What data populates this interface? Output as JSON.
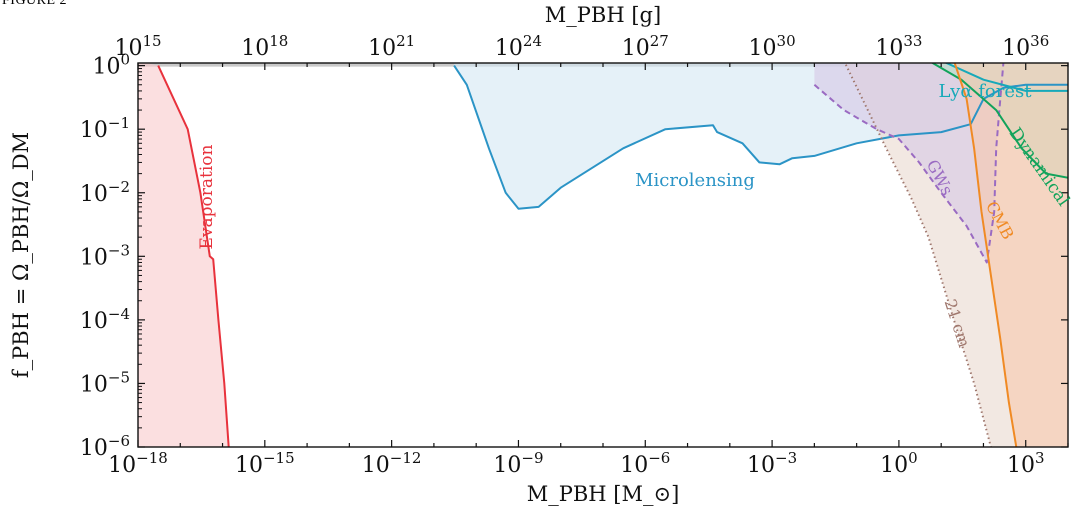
{
  "figure_caption": "FIGURE 2",
  "chart_data": {
    "type": "area",
    "title": "",
    "x_scale": "log",
    "y_scale": "log",
    "xlabel": "M_PBH [M_⊙]",
    "x2label": "M_PBH [g]",
    "ylabel": "f_PBH = Ω_PBH/Ω_DM",
    "xlim": [
      1e-18,
      10000.0
    ],
    "x2lim": [
      1000000000000000.0,
      1e+37
    ],
    "ylim": [
      1e-06,
      1.1
    ],
    "grid": false,
    "legend": "none",
    "x_ticks": [
      {
        "value": 1e-18,
        "base": "10",
        "exp": "−18"
      },
      {
        "value": 1e-15,
        "base": "10",
        "exp": "−15"
      },
      {
        "value": 1e-12,
        "base": "10",
        "exp": "−12"
      },
      {
        "value": 1e-09,
        "base": "10",
        "exp": "−9"
      },
      {
        "value": 1e-06,
        "base": "10",
        "exp": "−6"
      },
      {
        "value": 0.001,
        "base": "10",
        "exp": "−3"
      },
      {
        "value": 1,
        "base": "10",
        "exp": "0"
      },
      {
        "value": 1000.0,
        "base": "10",
        "exp": "3"
      }
    ],
    "x2_ticks": [
      {
        "value": 1000000000000000.0,
        "base": "10",
        "exp": "15"
      },
      {
        "value": 1e+18,
        "base": "10",
        "exp": "18"
      },
      {
        "value": 1e+21,
        "base": "10",
        "exp": "21"
      },
      {
        "value": 1e+24,
        "base": "10",
        "exp": "24"
      },
      {
        "value": 1e+27,
        "base": "10",
        "exp": "27"
      },
      {
        "value": 1e+30,
        "base": "10",
        "exp": "30"
      },
      {
        "value": 1e+33,
        "base": "10",
        "exp": "33"
      },
      {
        "value": 1e+36,
        "base": "10",
        "exp": "36"
      }
    ],
    "y_ticks": [
      {
        "value": 1,
        "base": "10",
        "exp": "0"
      },
      {
        "value": 0.1,
        "base": "10",
        "exp": "−1"
      },
      {
        "value": 0.01,
        "base": "10",
        "exp": "−2"
      },
      {
        "value": 0.001,
        "base": "10",
        "exp": "−3"
      },
      {
        "value": 0.0001,
        "base": "10",
        "exp": "−4"
      },
      {
        "value": 1e-05,
        "base": "10",
        "exp": "−5"
      },
      {
        "value": 1e-06,
        "base": "10",
        "exp": "−6"
      }
    ],
    "series": [
      {
        "name": "Evaporation",
        "color": "#e8323c",
        "fill": "#f9c9cc",
        "dash": "solid",
        "points": [
          [
            3e-18,
            1.0
          ],
          [
            1.5e-17,
            0.1
          ],
          [
            3e-17,
            0.01
          ],
          [
            5e-17,
            0.001
          ],
          [
            6e-17,
            0.0009
          ],
          [
            8e-17,
            0.0001
          ],
          [
            1.1e-16,
            1e-05
          ],
          [
            1.4e-16,
            1e-06
          ],
          [
            1.6e-16,
            3e-07
          ]
        ]
      },
      {
        "name": "Microlensing",
        "color": "#2b94c6",
        "fill": "#d3e7f3",
        "dash": "solid",
        "points": [
          [
            3e-11,
            1.0
          ],
          [
            6e-11,
            0.5
          ],
          [
            2e-10,
            0.05
          ],
          [
            5e-10,
            0.01
          ],
          [
            1e-09,
            0.0056
          ],
          [
            3e-09,
            0.006
          ],
          [
            1e-08,
            0.012
          ],
          [
            3e-07,
            0.05
          ],
          [
            3e-06,
            0.1
          ],
          [
            4e-05,
            0.115
          ],
          [
            5e-05,
            0.09
          ],
          [
            0.0002,
            0.06
          ],
          [
            0.0005,
            0.03
          ],
          [
            0.0015,
            0.028
          ],
          [
            0.003,
            0.035
          ],
          [
            0.01,
            0.038
          ],
          [
            0.1,
            0.06
          ],
          [
            1,
            0.08
          ],
          [
            10,
            0.09
          ],
          [
            50,
            0.12
          ],
          [
            100,
            0.3
          ],
          [
            300,
            0.45
          ],
          [
            1000,
            0.5
          ],
          [
            30000.0,
            0.5
          ]
        ]
      },
      {
        "name": "Lyα forest",
        "color": "#17a9b9",
        "fill": "#cdebe4",
        "dash": "solid",
        "points": [
          [
            10,
            1.2
          ],
          [
            100,
            0.6
          ],
          [
            1000,
            0.4
          ],
          [
            30000.0,
            0.4
          ]
        ]
      },
      {
        "name": "Dynamical",
        "color": "#12a35b",
        "fill": "#b6dfc6",
        "dash": "solid",
        "points": [
          [
            5,
            1.2
          ],
          [
            30,
            0.6
          ],
          [
            200,
            0.2
          ],
          [
            800,
            0.05
          ],
          [
            3000,
            0.02
          ],
          [
            30000.0,
            0.015
          ]
        ]
      },
      {
        "name": "GWs",
        "color": "#9a6bc2",
        "fill": "#d6c8e6",
        "dash": "dashed",
        "points": [
          [
            0.01,
            0.5
          ],
          [
            0.05,
            0.2
          ],
          [
            0.3,
            0.1
          ],
          [
            1,
            0.07
          ],
          [
            3,
            0.03
          ],
          [
            10,
            0.01
          ],
          [
            40,
            0.003
          ],
          [
            120,
            0.0008
          ],
          [
            180,
            0.005
          ],
          [
            200,
            0.05
          ],
          [
            250,
            0.3
          ],
          [
            300,
            1.2
          ]
        ]
      },
      {
        "name": "CMB",
        "color": "#f08a24",
        "fill": "#f6c8ad",
        "dash": "solid",
        "points": [
          [
            20,
            1.2
          ],
          [
            40,
            0.3
          ],
          [
            60,
            0.05
          ],
          [
            90,
            0.005
          ],
          [
            150,
            0.0005
          ],
          [
            250,
            5e-05
          ],
          [
            400,
            5e-06
          ],
          [
            600,
            1e-06
          ]
        ]
      },
      {
        "name": "21 cm",
        "color": "#a0786e",
        "fill": "#ead8cf",
        "dash": "dotted",
        "points": [
          [
            0.05,
            1.2
          ],
          [
            0.5,
            0.05
          ],
          [
            1,
            0.02
          ],
          [
            2,
            0.008
          ],
          [
            5,
            0.002
          ],
          [
            20,
            0.0001
          ],
          [
            60,
            1e-05
          ],
          [
            150,
            1e-06
          ]
        ]
      }
    ],
    "annotations": [
      {
        "text": "Evaporation",
        "series": "Evaporation"
      },
      {
        "text": "Microlensing",
        "series": "Microlensing"
      },
      {
        "text": "Lyα forest",
        "series": "Lyα forest"
      },
      {
        "text": "Dynamical",
        "series": "Dynamical"
      },
      {
        "text": "GWs",
        "series": "GWs"
      },
      {
        "text": "CMB",
        "series": "CMB"
      },
      {
        "text": "21 cm",
        "series": "21 cm"
      }
    ]
  }
}
